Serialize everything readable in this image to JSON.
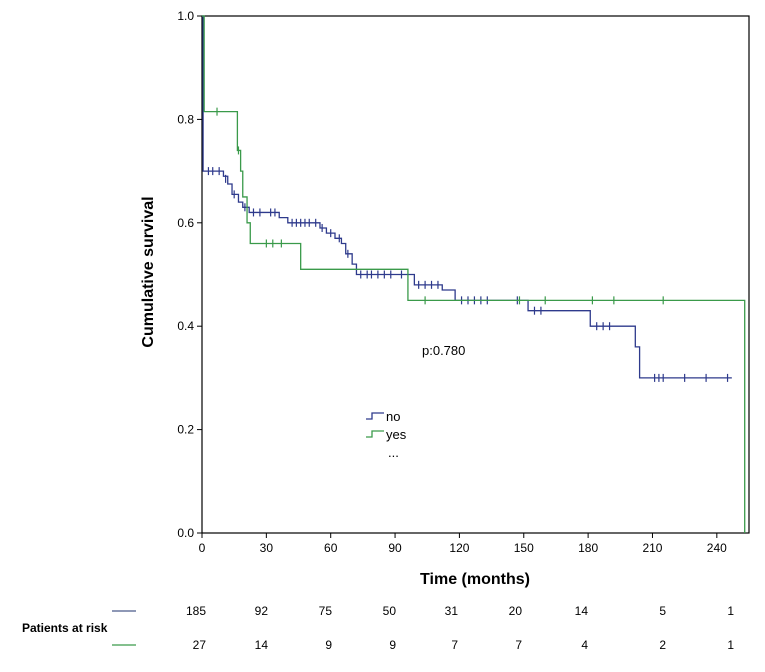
{
  "chart_data": {
    "type": "line",
    "subtype": "kaplan-meier",
    "title": "",
    "xlabel": "Time (months)",
    "ylabel": "Cumulative survival",
    "xlim": [
      0,
      255
    ],
    "ylim": [
      0,
      1
    ],
    "xticks": [
      0,
      30,
      60,
      90,
      120,
      150,
      180,
      210,
      240
    ],
    "yticks": [
      0.0,
      0.2,
      0.4,
      0.6,
      0.8,
      1.0
    ],
    "tick_decimals": 1,
    "annotation": "p:0.780",
    "legend": {
      "position": "center",
      "entries": [
        "no",
        "yes",
        "..."
      ]
    },
    "series": [
      {
        "name": "no",
        "color": "#2e3a8c",
        "steps": [
          [
            0,
            1.0
          ],
          [
            0.5,
            0.7
          ],
          [
            10,
            0.69
          ],
          [
            12,
            0.675
          ],
          [
            14,
            0.655
          ],
          [
            17,
            0.64
          ],
          [
            19,
            0.63
          ],
          [
            22,
            0.62
          ],
          [
            30,
            0.62
          ],
          [
            36,
            0.61
          ],
          [
            40,
            0.6
          ],
          [
            55,
            0.59
          ],
          [
            58,
            0.58
          ],
          [
            62,
            0.57
          ],
          [
            65,
            0.56
          ],
          [
            67,
            0.54
          ],
          [
            70,
            0.52
          ],
          [
            72,
            0.5
          ],
          [
            98,
            0.5
          ],
          [
            99,
            0.48
          ],
          [
            112,
            0.47
          ],
          [
            118,
            0.45
          ],
          [
            152,
            0.43
          ],
          [
            160,
            0.43
          ],
          [
            181,
            0.4
          ],
          [
            191,
            0.4
          ],
          [
            202,
            0.36
          ],
          [
            204,
            0.3
          ],
          [
            247,
            0.3
          ]
        ],
        "censors": [
          [
            3,
            0.7
          ],
          [
            5,
            0.7
          ],
          [
            8,
            0.7
          ],
          [
            11,
            0.685
          ],
          [
            15,
            0.655
          ],
          [
            20,
            0.63
          ],
          [
            24,
            0.62
          ],
          [
            27,
            0.62
          ],
          [
            32,
            0.62
          ],
          [
            34,
            0.62
          ],
          [
            42,
            0.6
          ],
          [
            44,
            0.6
          ],
          [
            46,
            0.6
          ],
          [
            48,
            0.6
          ],
          [
            50,
            0.6
          ],
          [
            53,
            0.6
          ],
          [
            56,
            0.59
          ],
          [
            60,
            0.58
          ],
          [
            64,
            0.57
          ],
          [
            68,
            0.54
          ],
          [
            74,
            0.5
          ],
          [
            77,
            0.5
          ],
          [
            79,
            0.5
          ],
          [
            82,
            0.5
          ],
          [
            85,
            0.5
          ],
          [
            88,
            0.5
          ],
          [
            93,
            0.5
          ],
          [
            101,
            0.48
          ],
          [
            104,
            0.48
          ],
          [
            107,
            0.48
          ],
          [
            110,
            0.48
          ],
          [
            121,
            0.45
          ],
          [
            124,
            0.45
          ],
          [
            127,
            0.45
          ],
          [
            130,
            0.45
          ],
          [
            133,
            0.45
          ],
          [
            147,
            0.45
          ],
          [
            155,
            0.43
          ],
          [
            158,
            0.43
          ],
          [
            184,
            0.4
          ],
          [
            187,
            0.4
          ],
          [
            190,
            0.4
          ],
          [
            211,
            0.3
          ],
          [
            213,
            0.3
          ],
          [
            215,
            0.3
          ],
          [
            225,
            0.3
          ],
          [
            235,
            0.3
          ],
          [
            245,
            0.3
          ]
        ]
      },
      {
        "name": "yes",
        "color": "#3a9a4a",
        "steps": [
          [
            0,
            1.0
          ],
          [
            1,
            0.815
          ],
          [
            15,
            0.815
          ],
          [
            16.5,
            0.74
          ],
          [
            18,
            0.7
          ],
          [
            19,
            0.65
          ],
          [
            21,
            0.6
          ],
          [
            22.5,
            0.56
          ],
          [
            45,
            0.56
          ],
          [
            46,
            0.51
          ],
          [
            95,
            0.51
          ],
          [
            96,
            0.45
          ],
          [
            252,
            0.45
          ],
          [
            253,
            0.0
          ]
        ],
        "censors": [
          [
            7,
            0.815
          ],
          [
            17,
            0.74
          ],
          [
            30,
            0.56
          ],
          [
            33,
            0.56
          ],
          [
            37,
            0.56
          ],
          [
            104,
            0.45
          ],
          [
            148,
            0.45
          ],
          [
            160,
            0.45
          ],
          [
            182,
            0.45
          ],
          [
            192,
            0.45
          ],
          [
            215,
            0.45
          ]
        ]
      }
    ],
    "risk_table": {
      "title": "Patients at risk",
      "times": [
        0,
        30,
        60,
        90,
        120,
        150,
        180,
        210,
        240
      ],
      "rows": [
        {
          "name": "no",
          "color": "#4a5a8a",
          "values": [
            185,
            92,
            75,
            50,
            31,
            20,
            14,
            5,
            1
          ]
        },
        {
          "name": "yes",
          "color": "#3a9a4a",
          "values": [
            27,
            14,
            9,
            9,
            7,
            7,
            4,
            2,
            1
          ]
        }
      ]
    }
  }
}
